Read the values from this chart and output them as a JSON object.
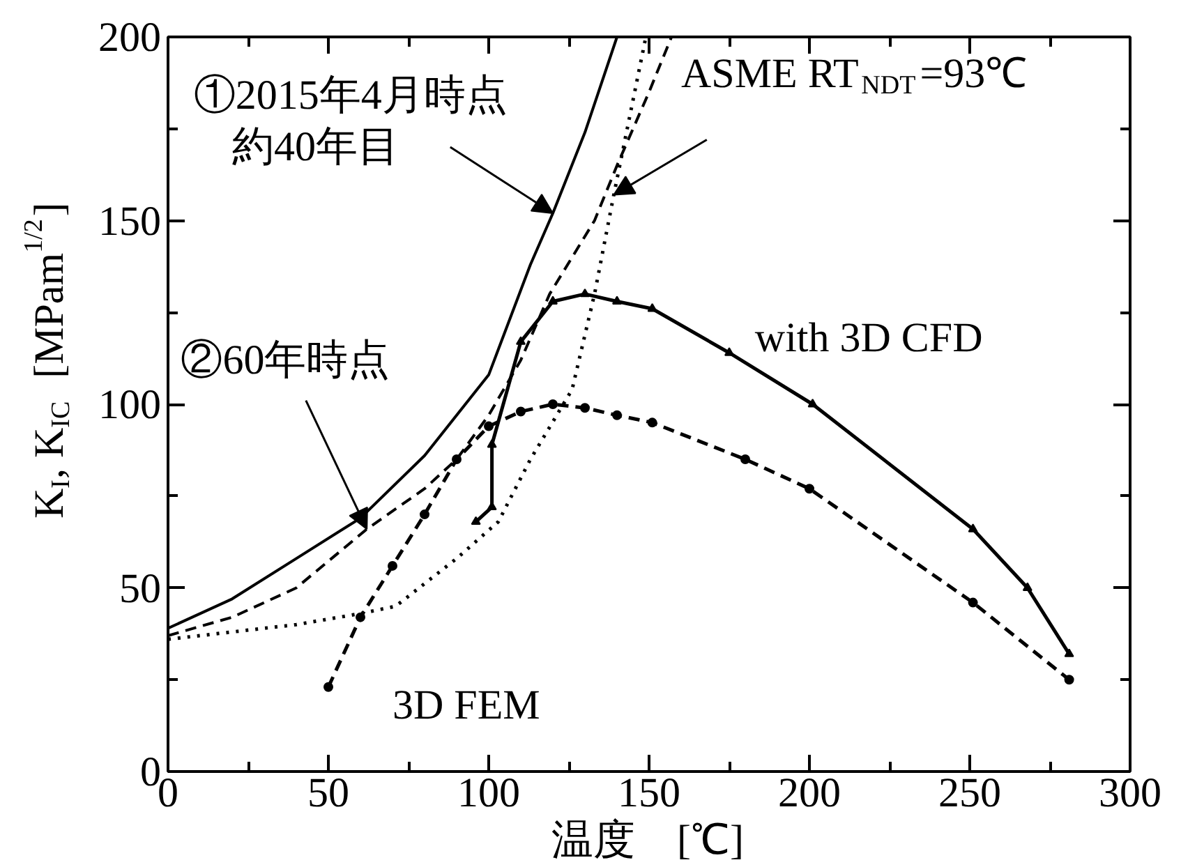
{
  "chart_data": {
    "type": "line",
    "xlabel": "温度　[℃]",
    "ylabel": "K$_{I}$, K$_{IC}$  [MPam$^{1/2}$]",
    "xlim": [
      0,
      300
    ],
    "xticks": [
      0,
      50,
      100,
      150,
      200,
      250,
      300
    ],
    "ylim": [
      0,
      200
    ],
    "yticks": [
      0,
      50,
      100,
      150,
      200
    ],
    "grid": false,
    "series": [
      {
        "color": "#000000",
        "line_style": "solid",
        "marker": "none",
        "x": [
          0,
          20,
          40,
          60,
          80,
          100,
          113,
          120,
          130,
          140
        ],
        "values": [
          39,
          47,
          58,
          69,
          86,
          108,
          138,
          152,
          174,
          200
        ]
      },
      {
        "color": "#000000",
        "line_style": "dashed",
        "marker": "none",
        "x": [
          0,
          20,
          40,
          62,
          80,
          90,
          100,
          110,
          119,
          133,
          140,
          150,
          157
        ],
        "values": [
          37,
          42,
          50,
          66,
          77,
          85,
          97,
          112,
          130,
          150,
          165,
          185,
          200
        ]
      },
      {
        "color": "#000000",
        "line_style": "dotted",
        "marker": "none",
        "x": [
          0,
          20,
          40,
          60,
          71,
          90,
          103,
          113,
          126,
          133,
          139,
          149
        ],
        "values": [
          36,
          38,
          40,
          43,
          45,
          58,
          68,
          85,
          104,
          130,
          157,
          200
        ]
      },
      {
        "color": "#000000",
        "line_style": "solid",
        "marker": "triangle",
        "x": [
          96,
          101,
          101,
          110,
          120,
          130,
          140,
          151,
          175,
          201,
          251,
          268,
          281
        ],
        "values": [
          68,
          72,
          89,
          117,
          128,
          130,
          128,
          126,
          114,
          100,
          66,
          50,
          32
        ]
      },
      {
        "color": "#000000",
        "line_style": "dashed",
        "marker": "circle",
        "x": [
          50,
          60,
          70,
          80,
          90,
          100,
          110,
          120,
          130,
          140,
          151,
          180,
          200,
          251,
          281
        ],
        "values": [
          23,
          42,
          56,
          70,
          85,
          94,
          98,
          100,
          99,
          97,
          95,
          85,
          77,
          46,
          25
        ]
      }
    ],
    "annotations": [
      {
        "text": "①2015年4月時点",
        "x": 120,
        "y": 152
      },
      "約40年目",
      {
        "text": "ASME RT$_{NDT}$=93℃",
        "x": 139,
        "y": 157
      },
      {
        "text": "②60年時点",
        "x": 62,
        "y": 66
      },
      "3D FEM",
      "with 3D CFD"
    ]
  }
}
